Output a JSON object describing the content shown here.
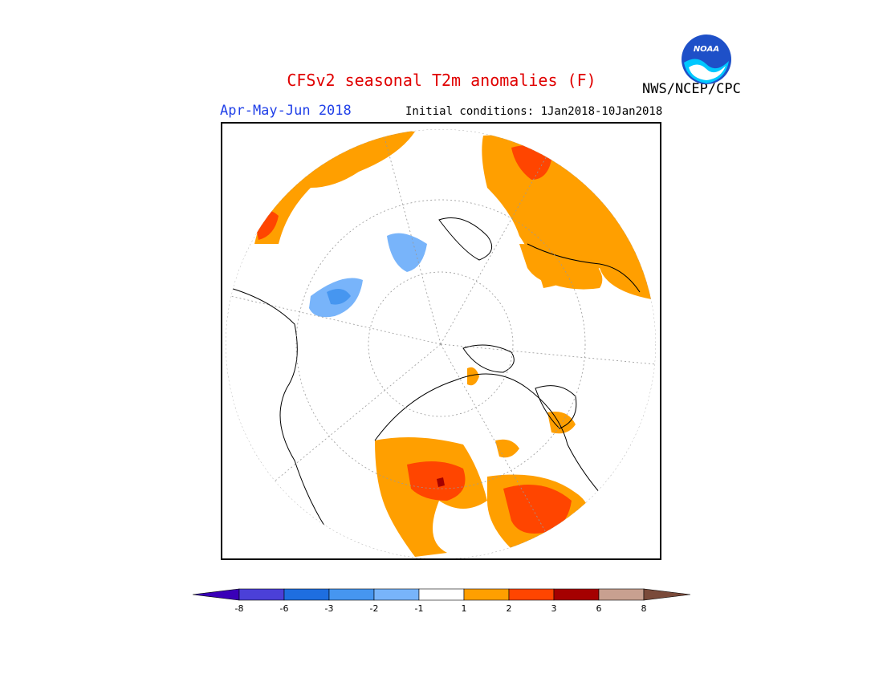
{
  "title": "CFSv2 seasonal T2m anomalies (F)",
  "season": "Apr-May-Jun 2018",
  "initial_conditions": "Initial conditions: 1Jan2018-10Jan2018",
  "agency": "NWS/NCEP/CPC",
  "logo": {
    "text": "NOAA",
    "icon": "noaa-logo-icon"
  },
  "colors": {
    "title": "#e00000",
    "season": "#2040e8",
    "warm_1_2": "#ff9f00",
    "warm_2_3": "#ff4500",
    "warm_3_6": "#a50000",
    "cool_1_2": "#78b4fa",
    "cool_2_3": "#4696f0"
  },
  "legend": {
    "bins": [
      {
        "color": "#3a00b8"
      },
      {
        "color": "#4b40d8"
      },
      {
        "color": "#1e6ee0"
      },
      {
        "color": "#4696f0"
      },
      {
        "color": "#78b4fa"
      },
      {
        "color": "#ffffff"
      },
      {
        "color": "#ff9f00"
      },
      {
        "color": "#ff4500"
      },
      {
        "color": "#a50000"
      },
      {
        "color": "#c8a090"
      },
      {
        "color": "#7a4a3a"
      }
    ],
    "tick_labels": [
      "-8",
      "-6",
      "-3",
      "-2",
      "-1",
      "1",
      "2",
      "3",
      "6",
      "8"
    ]
  }
}
